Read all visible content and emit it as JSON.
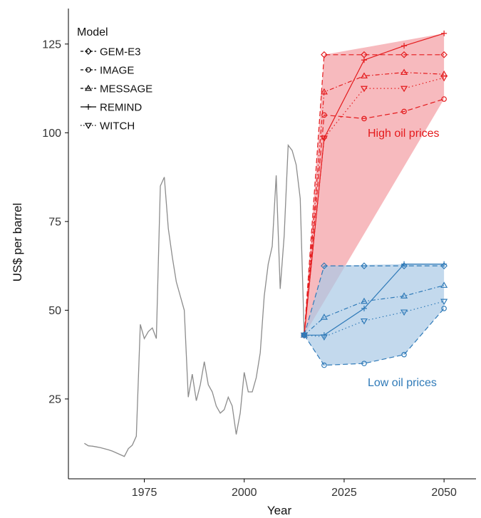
{
  "chart_data": {
    "type": "line",
    "xlabel": "Year",
    "ylabel": "US$ per barrel",
    "xlim": [
      1956,
      2058
    ],
    "ylim": [
      2.5,
      135
    ],
    "xticks": [
      1975,
      2000,
      2025,
      2050
    ],
    "yticks": [
      25,
      50,
      75,
      100,
      125
    ],
    "grid": false,
    "legend": {
      "title": "Model",
      "position": "top-left",
      "entries": [
        "GEM-E3",
        "IMAGE",
        "MESSAGE",
        "REMIND",
        "WITCH"
      ]
    },
    "colors": {
      "historical": "#8c8c8c",
      "high": "#e41a1c",
      "high_fill": "#f4a3a8",
      "low": "#2f7ab8",
      "low_fill": "#a9c9e6"
    },
    "historical": {
      "x": [
        1960,
        1961,
        1962,
        1963,
        1964,
        1965,
        1966,
        1967,
        1968,
        1969,
        1970,
        1971,
        1972,
        1973,
        1974,
        1975,
        1976,
        1977,
        1978,
        1979,
        1980,
        1981,
        1982,
        1983,
        1984,
        1985,
        1986,
        1987,
        1988,
        1989,
        1990,
        1991,
        1992,
        1993,
        1994,
        1995,
        1996,
        1997,
        1998,
        1999,
        2000,
        2001,
        2002,
        2003,
        2004,
        2005,
        2006,
        2007,
        2008,
        2009,
        2010,
        2011,
        2012,
        2013,
        2014,
        2015
      ],
      "y": [
        12.5,
        11.8,
        11.7,
        11.5,
        11.3,
        11.0,
        10.7,
        10.3,
        9.8,
        9.3,
        8.8,
        11.0,
        12.0,
        14.5,
        46.0,
        42.0,
        44.0,
        45.0,
        42.0,
        85.0,
        87.5,
        73.0,
        65.0,
        58.0,
        54.0,
        50.0,
        25.5,
        32.0,
        24.5,
        29.0,
        35.5,
        29.0,
        27.0,
        23.0,
        21.0,
        22.0,
        25.5,
        23.0,
        15.0,
        21.0,
        32.5,
        27.0,
        27.0,
        31.0,
        38.0,
        54.0,
        63.0,
        68.0,
        88.0,
        56.0,
        71.0,
        96.5,
        95.0,
        91.0,
        81.5,
        43.0
      ]
    },
    "scenarios": [
      {
        "group": "High oil prices",
        "label": "High oil prices",
        "series": [
          {
            "name": "GEM-E3",
            "x": [
              2015,
              2020,
              2030,
              2040,
              2050
            ],
            "y": [
              43,
              122,
              122,
              122,
              122
            ]
          },
          {
            "name": "IMAGE",
            "x": [
              2015,
              2020,
              2030,
              2040,
              2050
            ],
            "y": [
              43,
              105,
              104,
              106,
              109.5
            ]
          },
          {
            "name": "MESSAGE",
            "x": [
              2015,
              2020,
              2030,
              2040,
              2050
            ],
            "y": [
              43,
              111.5,
              116,
              117,
              116.5
            ]
          },
          {
            "name": "REMIND",
            "x": [
              2015,
              2020,
              2030,
              2040,
              2050
            ],
            "y": [
              43,
              98.5,
              120.5,
              124.5,
              128
            ]
          },
          {
            "name": "WITCH",
            "x": [
              2015,
              2020,
              2030,
              2040,
              2050
            ],
            "y": [
              43,
              98.5,
              112.5,
              112.5,
              115.5
            ]
          }
        ]
      },
      {
        "group": "Low oil prices",
        "label": "Low oil prices",
        "series": [
          {
            "name": "GEM-E3",
            "x": [
              2015,
              2020,
              2030,
              2040,
              2050
            ],
            "y": [
              43,
              62.5,
              62.5,
              62.5,
              62.5
            ]
          },
          {
            "name": "IMAGE",
            "x": [
              2015,
              2020,
              2030,
              2040,
              2050
            ],
            "y": [
              43,
              34.5,
              35,
              37.5,
              50.5
            ]
          },
          {
            "name": "MESSAGE",
            "x": [
              2015,
              2020,
              2030,
              2040,
              2050
            ],
            "y": [
              43,
              48,
              52.5,
              54,
              57
            ]
          },
          {
            "name": "REMIND",
            "x": [
              2015,
              2020,
              2030,
              2040,
              2050
            ],
            "y": [
              43,
              43,
              50.5,
              63,
              63
            ]
          },
          {
            "name": "WITCH",
            "x": [
              2015,
              2020,
              2030,
              2040,
              2050
            ],
            "y": [
              43,
              42.5,
              47,
              49.5,
              52.5
            ]
          }
        ]
      }
    ]
  }
}
